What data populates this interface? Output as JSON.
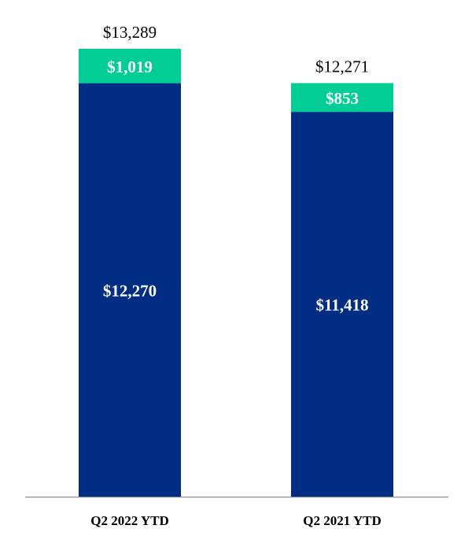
{
  "chart_data": {
    "type": "bar",
    "stacked": true,
    "title": "",
    "xlabel": "",
    "ylabel": "",
    "categories": [
      "Q2 2022 YTD",
      "Q2 2021 YTD"
    ],
    "series": [
      {
        "name": "base",
        "color": "#002D84",
        "values": [
          12270,
          11418
        ],
        "labels": [
          "$12,270",
          "$11,418"
        ]
      },
      {
        "name": "top",
        "color": "#00CE95",
        "values": [
          1019,
          853
        ],
        "labels": [
          "$1,019",
          "$853"
        ]
      }
    ],
    "totals": [
      13289,
      12271
    ],
    "total_labels": [
      "$13,289",
      "$12,271"
    ],
    "ylim": [
      0,
      13289
    ],
    "grid": false,
    "legend": "none"
  }
}
